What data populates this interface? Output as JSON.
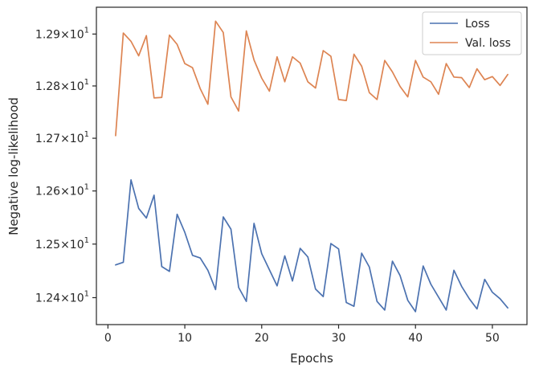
{
  "chart_data": {
    "type": "line",
    "xlabel": "Epochs",
    "ylabel": "Negative log-likelihood",
    "y_scale": "log",
    "xlim": [
      -1.5,
      54.5
    ],
    "ylim": [
      12.35,
      12.952
    ],
    "x_ticks": [
      0,
      10,
      20,
      30,
      40,
      50
    ],
    "y_ticks": [
      {
        "value": 12.4,
        "mantissa": "1.24",
        "base": "10",
        "exp": "1"
      },
      {
        "value": 12.5,
        "mantissa": "1.25",
        "base": "10",
        "exp": "1"
      },
      {
        "value": 12.6,
        "mantissa": "1.26",
        "base": "10",
        "exp": "1"
      },
      {
        "value": 12.7,
        "mantissa": "1.27",
        "base": "10",
        "exp": "1"
      },
      {
        "value": 12.8,
        "mantissa": "1.28",
        "base": "10",
        "exp": "1"
      },
      {
        "value": 12.9,
        "mantissa": "1.29",
        "base": "10",
        "exp": "1"
      }
    ],
    "times_sign": "×",
    "grid": false,
    "legend_position": "top-right",
    "x": [
      1,
      2,
      3,
      4,
      5,
      6,
      7,
      8,
      9,
      10,
      11,
      12,
      13,
      14,
      15,
      16,
      17,
      18,
      19,
      20,
      21,
      22,
      23,
      24,
      25,
      26,
      27,
      28,
      29,
      30,
      31,
      32,
      33,
      34,
      35,
      36,
      37,
      38,
      39,
      40,
      41,
      42,
      43,
      44,
      45,
      46,
      47,
      48,
      49,
      50,
      51,
      52
    ],
    "series": [
      {
        "name": "Loss",
        "color": "#4c72b0",
        "values": [
          12.461,
          12.466,
          12.621,
          12.567,
          12.549,
          12.592,
          12.458,
          12.449,
          12.556,
          12.522,
          12.479,
          12.474,
          12.451,
          12.415,
          12.551,
          12.528,
          12.419,
          12.393,
          12.539,
          12.482,
          12.452,
          12.422,
          12.478,
          12.431,
          12.492,
          12.476,
          12.416,
          12.402,
          12.501,
          12.491,
          12.391,
          12.384,
          12.483,
          12.457,
          12.393,
          12.377,
          12.468,
          12.441,
          12.395,
          12.374,
          12.459,
          12.425,
          12.401,
          12.377,
          12.451,
          12.421,
          12.398,
          12.379,
          12.434,
          12.41,
          12.398,
          12.381
        ]
      },
      {
        "name": "Val. loss",
        "color": "#dd8452",
        "values": [
          12.705,
          12.902,
          12.886,
          12.858,
          12.897,
          12.777,
          12.778,
          12.898,
          12.88,
          12.843,
          12.835,
          12.795,
          12.765,
          12.925,
          12.903,
          12.779,
          12.752,
          12.906,
          12.85,
          12.815,
          12.79,
          12.856,
          12.808,
          12.856,
          12.844,
          12.808,
          12.796,
          12.868,
          12.857,
          12.774,
          12.772,
          12.861,
          12.838,
          12.787,
          12.774,
          12.849,
          12.827,
          12.799,
          12.779,
          12.849,
          12.817,
          12.808,
          12.784,
          12.843,
          12.817,
          12.816,
          12.797,
          12.833,
          12.812,
          12.818,
          12.801,
          12.822
        ]
      }
    ]
  }
}
